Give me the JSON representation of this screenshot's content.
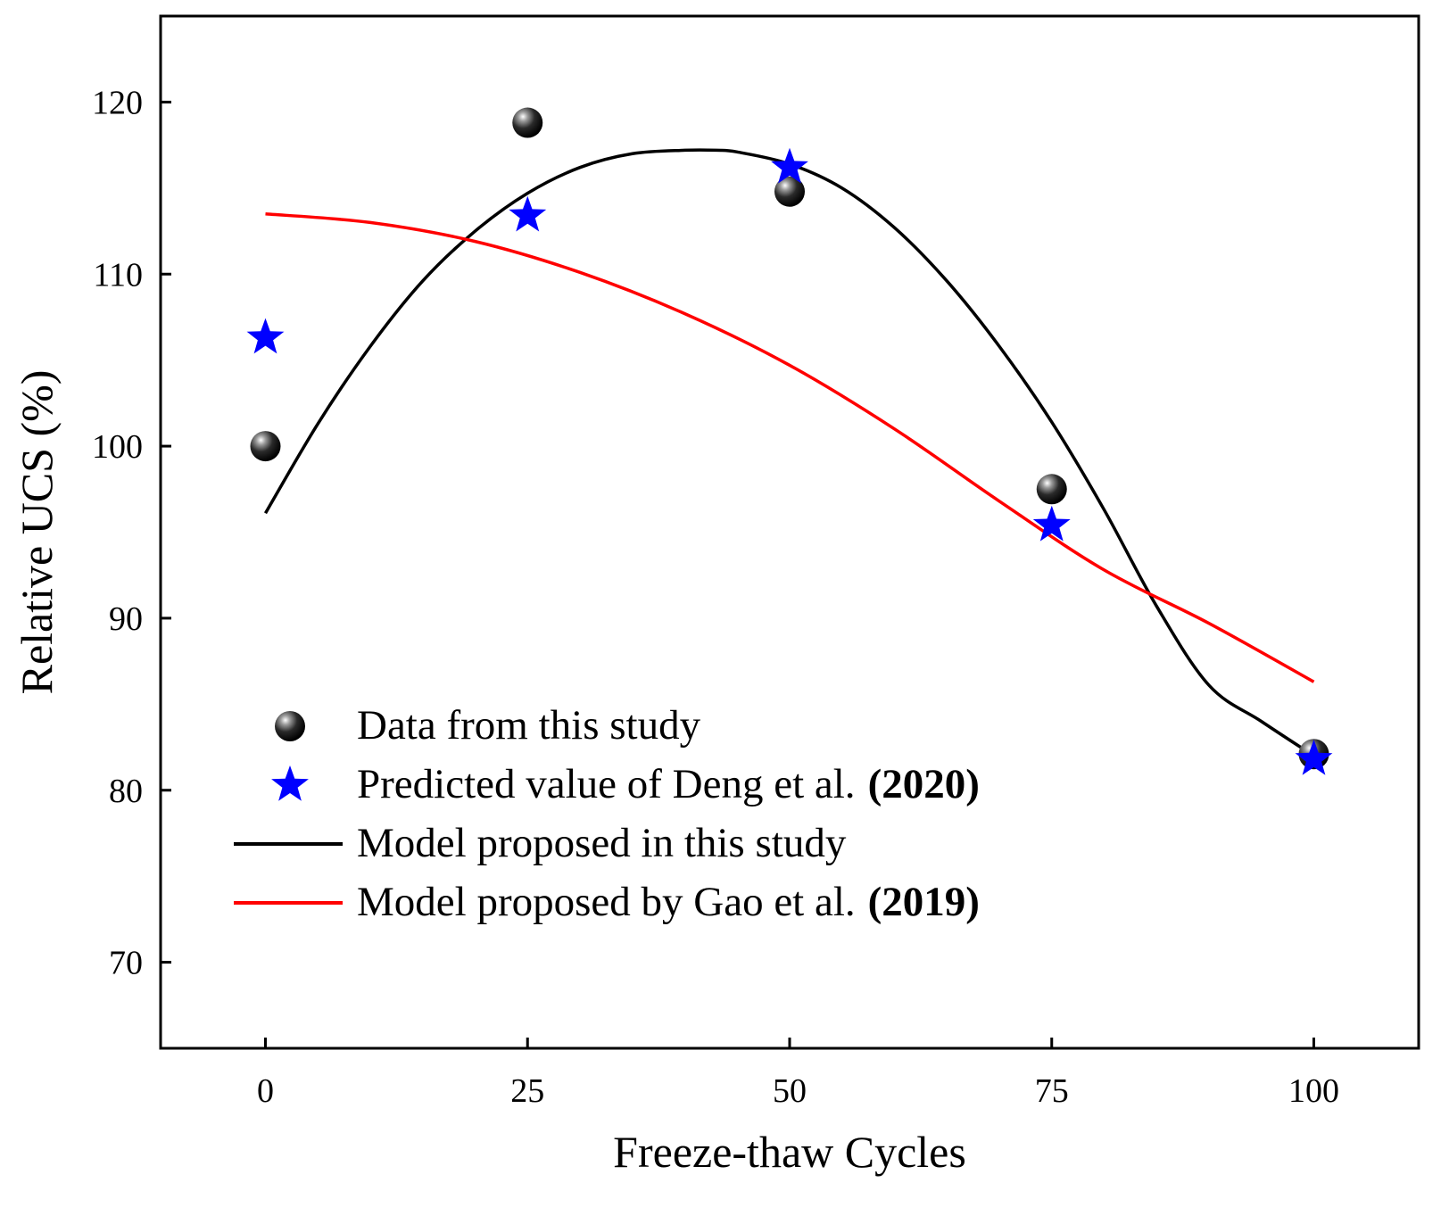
{
  "chart_data": {
    "type": "scatter",
    "title": "",
    "xlabel": "Freeze-thaw Cycles",
    "ylabel": "Relative UCS (%)",
    "xlim": [
      -10,
      110
    ],
    "ylim": [
      65,
      125
    ],
    "x_ticks": [
      0,
      25,
      50,
      75,
      100
    ],
    "y_ticks": [
      70,
      80,
      90,
      100,
      110,
      120
    ],
    "grid": false,
    "legend_position": "bottom-left",
    "series": [
      {
        "name": "Data from this study",
        "type": "scatter",
        "marker": "sphere",
        "color": "#000000",
        "x": [
          0,
          25,
          50,
          75,
          100
        ],
        "y": [
          100.0,
          118.8,
          114.8,
          97.5,
          82.1
        ]
      },
      {
        "name": "Predicted value of Deng et al. (2020)",
        "type": "scatter",
        "marker": "star",
        "color": "#0000ff",
        "x": [
          0,
          25,
          50,
          75,
          100
        ],
        "y": [
          106.3,
          113.4,
          116.2,
          95.4,
          81.8
        ]
      },
      {
        "name": "Model proposed in this study",
        "type": "line",
        "color": "#000000",
        "x": [
          0,
          5,
          10,
          15,
          20,
          25,
          30,
          35,
          40,
          43,
          45,
          50,
          55,
          60,
          65,
          70,
          75,
          80,
          85,
          90,
          95,
          100
        ],
        "y": [
          96.1,
          101.3,
          105.8,
          109.6,
          112.5,
          114.7,
          116.2,
          117.0,
          117.2,
          117.2,
          117.1,
          116.4,
          115.0,
          112.7,
          109.6,
          105.8,
          101.4,
          96.3,
          90.7,
          86.1,
          84.0,
          82.0
        ]
      },
      {
        "name": "Model proposed by Gao et al. (2019)",
        "type": "line",
        "color": "#ff0000",
        "x": [
          0,
          10,
          20,
          30,
          40,
          50,
          60,
          70,
          80,
          90,
          100
        ],
        "y": [
          113.5,
          113.0,
          111.9,
          110.1,
          107.7,
          104.7,
          101.0,
          96.8,
          92.8,
          89.7,
          86.3
        ]
      }
    ],
    "legend": [
      {
        "text": "Data from this study",
        "year": ""
      },
      {
        "text": "Predicted value of Deng et al.",
        "year": "(2020)"
      },
      {
        "text": "Model proposed in this study",
        "year": ""
      },
      {
        "text": "Model proposed by Gao et al.",
        "year": "(2019)"
      }
    ]
  }
}
